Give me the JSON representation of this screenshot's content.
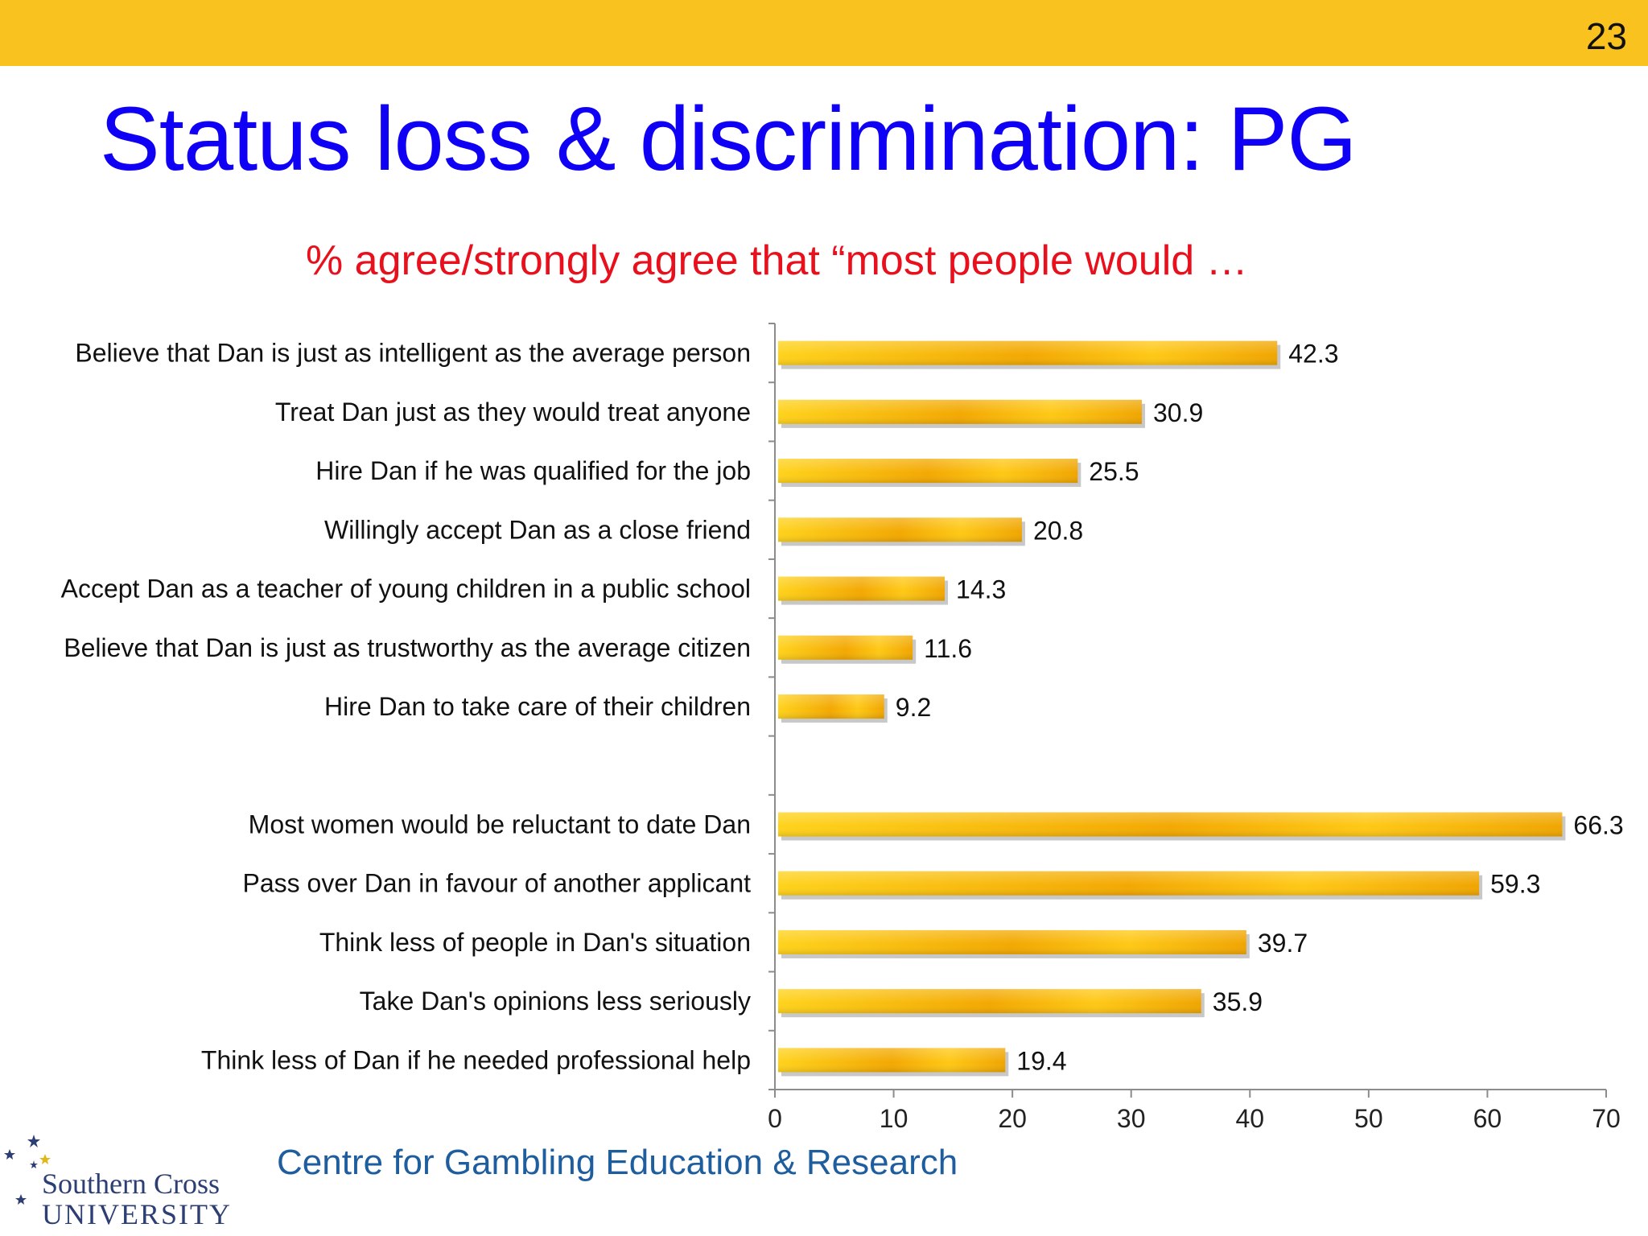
{
  "slide": {
    "page_number": "23",
    "title": "Status loss & discrimination: PG",
    "footer": "Centre for Gambling Education & Research",
    "logo": {
      "line1": "Southern Cross",
      "line2": "UNIVERSITY"
    }
  },
  "colors": {
    "top_bar": "#F9C21E",
    "title": "#0F00F5",
    "subtitle": "#E8101C",
    "bar_light": "#FFD21A",
    "bar_dark": "#F0A500",
    "footer": "#1F5E9E",
    "axis": "#7F7F7F"
  },
  "chart_data": {
    "type": "bar",
    "orientation": "horizontal",
    "title": "% agree/strongly agree that “most people would …",
    "categories": [
      "Believe that Dan is just as intelligent as the average person",
      "Treat Dan just as they would treat anyone",
      "Hire Dan if he was qualified for the job",
      "Willingly accept Dan as a close friend",
      "Accept Dan as a teacher of young children in a public school",
      "Believe that Dan is just as trustworthy as the average citizen",
      "Hire Dan to take care of their children",
      "",
      "Most women would be reluctant to date Dan",
      "Pass over Dan in favour of another applicant",
      "Think less of people in Dan's situation",
      "Take Dan's opinions less seriously",
      "Think less of Dan if he needed professional help"
    ],
    "values": [
      42.3,
      30.9,
      25.5,
      20.8,
      14.3,
      11.6,
      9.2,
      null,
      66.3,
      59.3,
      39.7,
      35.9,
      19.4
    ],
    "value_labels": [
      "42.3",
      "30.9",
      "25.5",
      "20.8",
      "14.3",
      "11.6",
      "9.2",
      "",
      "66.3",
      "59.3",
      "39.7",
      "35.9",
      "19.4"
    ],
    "xlim": [
      0,
      70
    ],
    "xticks": [
      "0",
      "10",
      "20",
      "30",
      "40",
      "50",
      "60",
      "70"
    ],
    "xlabel": "",
    "ylabel": "",
    "grid": false,
    "legend": "none"
  }
}
